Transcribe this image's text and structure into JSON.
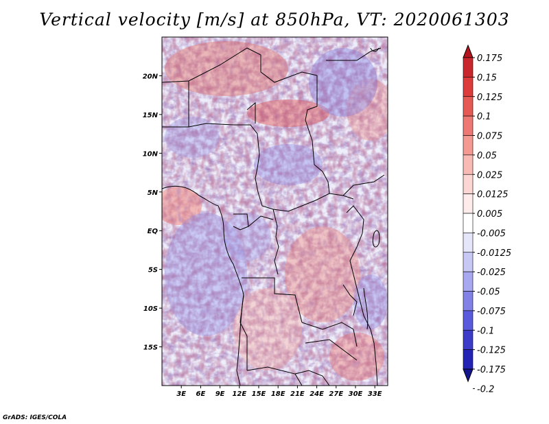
{
  "title": "Vertical velocity [m/s] at 850hPa, VT: 2020061303",
  "credit": "GrADS: IGES/COLA",
  "map": {
    "lon_range": [
      0,
      35
    ],
    "lat_range": [
      -20,
      25
    ],
    "x_ticks": [
      "3E",
      "6E",
      "9E",
      "12E",
      "15E",
      "18E",
      "21E",
      "24E",
      "27E",
      "30E",
      "33E"
    ],
    "x_tick_values": [
      3,
      6,
      9,
      12,
      15,
      18,
      21,
      24,
      27,
      30,
      33
    ],
    "y_ticks": [
      "20N",
      "15N",
      "10N",
      "5N",
      "EQ",
      "5S",
      "10S",
      "15S"
    ],
    "y_tick_values": [
      20,
      15,
      10,
      5,
      0,
      -5,
      -10,
      -15
    ]
  },
  "colorbar": {
    "labels": [
      "0.175",
      "0.15",
      "0.125",
      "0.1",
      "0.075",
      "0.05",
      "0.025",
      "0.0125",
      "0.005",
      "-0.005",
      "-0.0125",
      "-0.025",
      "-0.05",
      "-0.075",
      "-0.1",
      "-0.125",
      "-0.175",
      "-0.2"
    ],
    "colors": [
      "#b4141e",
      "#c8282d",
      "#dc3c3c",
      "#e65a55",
      "#ee7873",
      "#f49a93",
      "#f8bab4",
      "#fbd6d2",
      "#fdeceb",
      "#ffffff",
      "#e6e6fa",
      "#c8c8f5",
      "#a8a8f0",
      "#8282e6",
      "#5a5adc",
      "#3c3cc8",
      "#2323b4",
      "#14148c"
    ]
  }
}
